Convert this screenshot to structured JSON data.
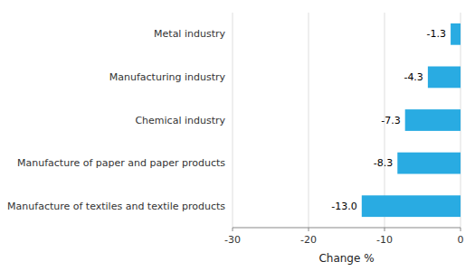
{
  "chart_data": {
    "type": "bar",
    "orientation": "horizontal",
    "categories": [
      "Metal industry",
      "Manufacturing industry",
      "Chemical industry",
      "Manufacture of paper and paper products",
      "Manufacture of textiles and textile products"
    ],
    "values": [
      -1.3,
      -4.3,
      -7.3,
      -8.3,
      -13.0
    ],
    "value_labels": [
      "-1.3",
      "-4.3",
      "-7.3",
      "-8.3",
      "-13.0"
    ],
    "data_labels": true,
    "color": "#29ABE2",
    "xlim": [
      -30,
      0
    ],
    "xticks": [
      -30,
      -20,
      -10,
      0
    ],
    "xlabel": "Change %",
    "grid": true
  }
}
